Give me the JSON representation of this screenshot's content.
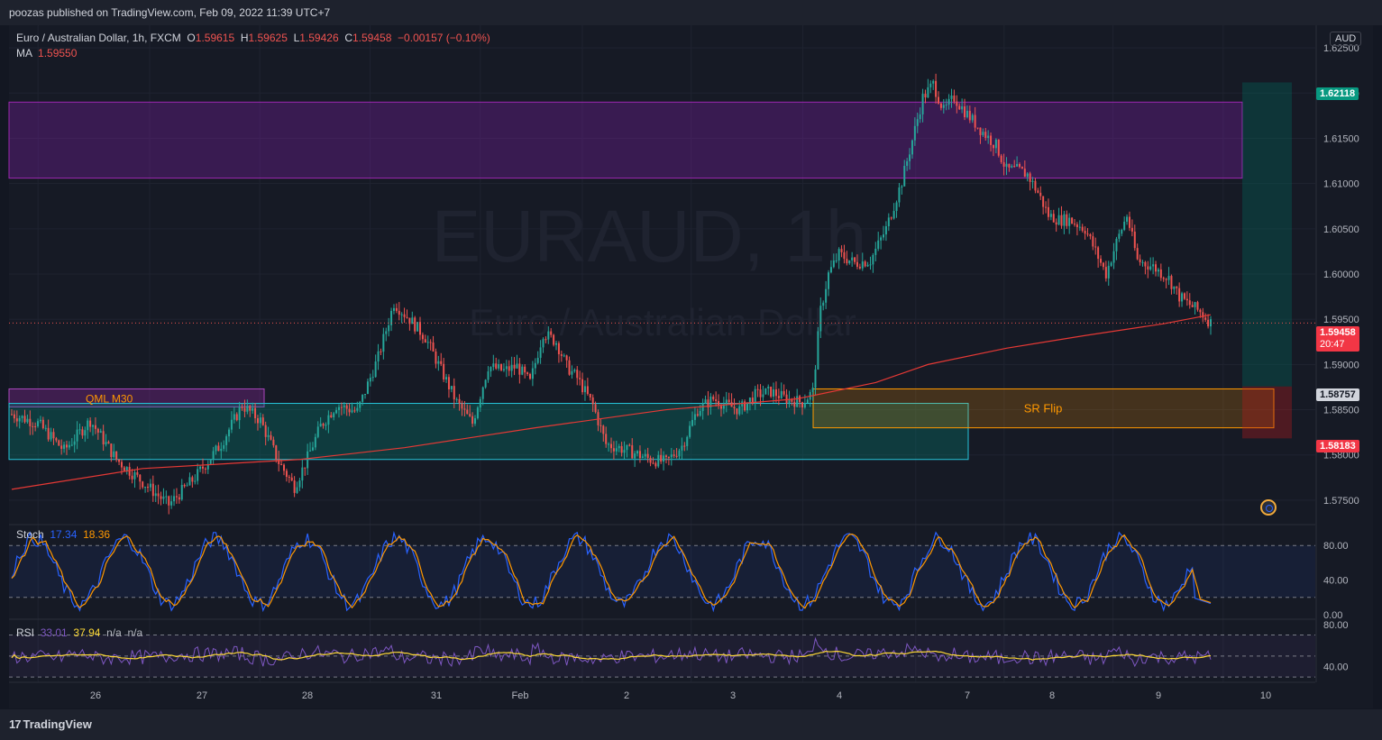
{
  "header": {
    "publisher_text": "poozas published on TradingView.com, Feb 09, 2022 11:39 UTC+7"
  },
  "legend": {
    "symbol_label": "Euro / Australian Dollar, 1h, FXCM",
    "open_label": "O",
    "open_value": "1.59615",
    "high_label": "H",
    "high_value": "1.59625",
    "low_label": "L",
    "low_value": "1.59426",
    "close_label": "C",
    "close_value": "1.59458",
    "change_value": "−0.00157 (−0.10%)",
    "ma_label": "MA",
    "ma_value": "1.59550"
  },
  "watermark": {
    "symbol": "EURAUD, 1h",
    "name": "Euro / Australian Dollar"
  },
  "currency_label": "AUD",
  "zones": {
    "qml_label": "QML M30",
    "sr_flip_label": "SR Flip"
  },
  "price_axis": {
    "ticks": [
      "1.62500",
      "1.62000",
      "1.61500",
      "1.61000",
      "1.60500",
      "1.60000",
      "1.59500",
      "1.59000",
      "1.58500",
      "1.58000",
      "1.57500"
    ],
    "tag_target": "1.62118",
    "tag_current": "1.59458",
    "tag_countdown": "20:47",
    "tag_entry": "1.58757",
    "tag_stop": "1.58183"
  },
  "time_axis": {
    "labels": [
      "26",
      "27",
      "28",
      "31",
      "Feb",
      "2",
      "3",
      "4",
      "7",
      "8",
      "9",
      "10"
    ]
  },
  "stoch": {
    "label": "Stoch",
    "k_value": "17.34",
    "d_value": "18.36",
    "ticks": [
      "80.00",
      "40.00",
      "0.00"
    ]
  },
  "rsi": {
    "label": "RSI",
    "value": "33.01",
    "ma_value": "37.94",
    "extra_1": "n/a",
    "extra_2": "n/a",
    "ticks": [
      "80.00",
      "40.00"
    ]
  },
  "footer": {
    "brand": "TradingView"
  },
  "colors": {
    "up": "#26a69a",
    "down": "#ef5350",
    "ma": "#e53935",
    "stoch_k": "#2962ff",
    "stoch_d": "#ff9800",
    "rsi": "#7e57c2",
    "rsi_ma": "#fdd835"
  },
  "chart_data": {
    "type": "candlestick",
    "y_range": [
      1.5728,
      1.6275
    ],
    "x_labels": [
      "26",
      "27",
      "28",
      "31",
      "Feb",
      "2",
      "3",
      "4",
      "7",
      "8",
      "9",
      "10"
    ],
    "close_path": [
      [
        0,
        1.5845
      ],
      [
        10,
        1.5835
      ],
      [
        20,
        1.5805
      ],
      [
        30,
        1.5838
      ],
      [
        40,
        1.5795
      ],
      [
        50,
        1.577
      ],
      [
        60,
        1.5745
      ],
      [
        70,
        1.5775
      ],
      [
        80,
        1.5812
      ],
      [
        88,
        1.5855
      ],
      [
        95,
        1.5838
      ],
      [
        102,
        1.5792
      ],
      [
        108,
        1.5765
      ],
      [
        112,
        1.579
      ],
      [
        118,
        1.5832
      ],
      [
        124,
        1.5855
      ],
      [
        132,
        1.5848
      ],
      [
        140,
        1.5908
      ],
      [
        146,
        1.5968
      ],
      [
        152,
        1.595
      ],
      [
        158,
        1.593
      ],
      [
        165,
        1.5888
      ],
      [
        170,
        1.5858
      ],
      [
        176,
        1.5835
      ],
      [
        182,
        1.5898
      ],
      [
        188,
        1.5893
      ],
      [
        193,
        1.5898
      ],
      [
        198,
        1.588
      ],
      [
        203,
        1.5935
      ],
      [
        208,
        1.5925
      ],
      [
        212,
        1.5898
      ],
      [
        216,
        1.5885
      ],
      [
        222,
        1.5855
      ],
      [
        227,
        1.5812
      ],
      [
        232,
        1.5808
      ],
      [
        238,
        1.5802
      ],
      [
        244,
        1.5795
      ],
      [
        250,
        1.5792
      ],
      [
        256,
        1.581
      ],
      [
        262,
        1.585
      ],
      [
        268,
        1.5862
      ],
      [
        273,
        1.5855
      ],
      [
        278,
        1.585
      ],
      [
        284,
        1.5866
      ],
      [
        290,
        1.587
      ],
      [
        296,
        1.5862
      ],
      [
        302,
        1.5858
      ],
      [
        306,
        1.587
      ],
      [
        309,
        1.596
      ],
      [
        312,
        1.6
      ],
      [
        316,
        1.6022
      ],
      [
        322,
        1.6012
      ],
      [
        328,
        1.6015
      ],
      [
        334,
        1.605
      ],
      [
        340,
        1.6102
      ],
      [
        344,
        1.6148
      ],
      [
        348,
        1.6195
      ],
      [
        352,
        1.621
      ],
      [
        356,
        1.618
      ],
      [
        360,
        1.6195
      ],
      [
        364,
        1.618
      ],
      [
        370,
        1.616
      ],
      [
        376,
        1.6142
      ],
      [
        380,
        1.6115
      ],
      [
        384,
        1.6115
      ],
      [
        388,
        1.611
      ],
      [
        392,
        1.609
      ],
      [
        396,
        1.6065
      ],
      [
        400,
        1.606
      ],
      [
        404,
        1.606
      ],
      [
        410,
        1.605
      ],
      [
        414,
        1.6025
      ],
      [
        418,
        1.6
      ],
      [
        422,
        1.6035
      ],
      [
        426,
        1.6065
      ],
      [
        430,
        1.6015
      ],
      [
        436,
        1.6008
      ],
      [
        442,
        1.5995
      ],
      [
        446,
        1.5975
      ],
      [
        450,
        1.5966
      ],
      [
        454,
        1.5958
      ],
      [
        458,
        1.5946
      ]
    ],
    "ma": [
      [
        0,
        1.5762
      ],
      [
        50,
        1.5785
      ],
      [
        110,
        1.5795
      ],
      [
        150,
        1.5808
      ],
      [
        200,
        1.583
      ],
      [
        250,
        1.585
      ],
      [
        300,
        1.5862
      ],
      [
        330,
        1.588
      ],
      [
        350,
        1.59
      ],
      [
        380,
        1.5918
      ],
      [
        410,
        1.5932
      ],
      [
        440,
        1.5945
      ],
      [
        458,
        1.5955
      ]
    ],
    "zones": [
      {
        "name": "resistance",
        "x": [
          0,
          463
        ],
        "y": [
          1.6106,
          1.619
        ]
      },
      {
        "name": "QML M30",
        "x": [
          0,
          96
        ],
        "y": [
          1.5853,
          1.5873
        ]
      },
      {
        "name": "demand",
        "x": [
          0,
          360
        ],
        "y": [
          1.5795,
          1.5857
        ]
      },
      {
        "name": "SR Flip",
        "x": [
          304,
          478
        ],
        "y": [
          1.583,
          1.5873
        ]
      },
      {
        "name": "reward",
        "x": [
          465,
          483
        ],
        "y": [
          1.58757,
          1.62118
        ]
      },
      {
        "name": "risk",
        "x": [
          465,
          483
        ],
        "y": [
          1.58183,
          1.58757
        ]
      }
    ],
    "last_price": 1.59458,
    "stoch_range": [
      0,
      100
    ],
    "stoch_levels": [
      80,
      20
    ],
    "stoch_k_last": 17.34,
    "stoch_d_last": 18.36,
    "rsi_range": [
      25,
      85
    ],
    "rsi_levels": [
      70,
      50,
      30
    ],
    "rsi_last": 33.01,
    "rsi_ma_last": 37.94
  }
}
